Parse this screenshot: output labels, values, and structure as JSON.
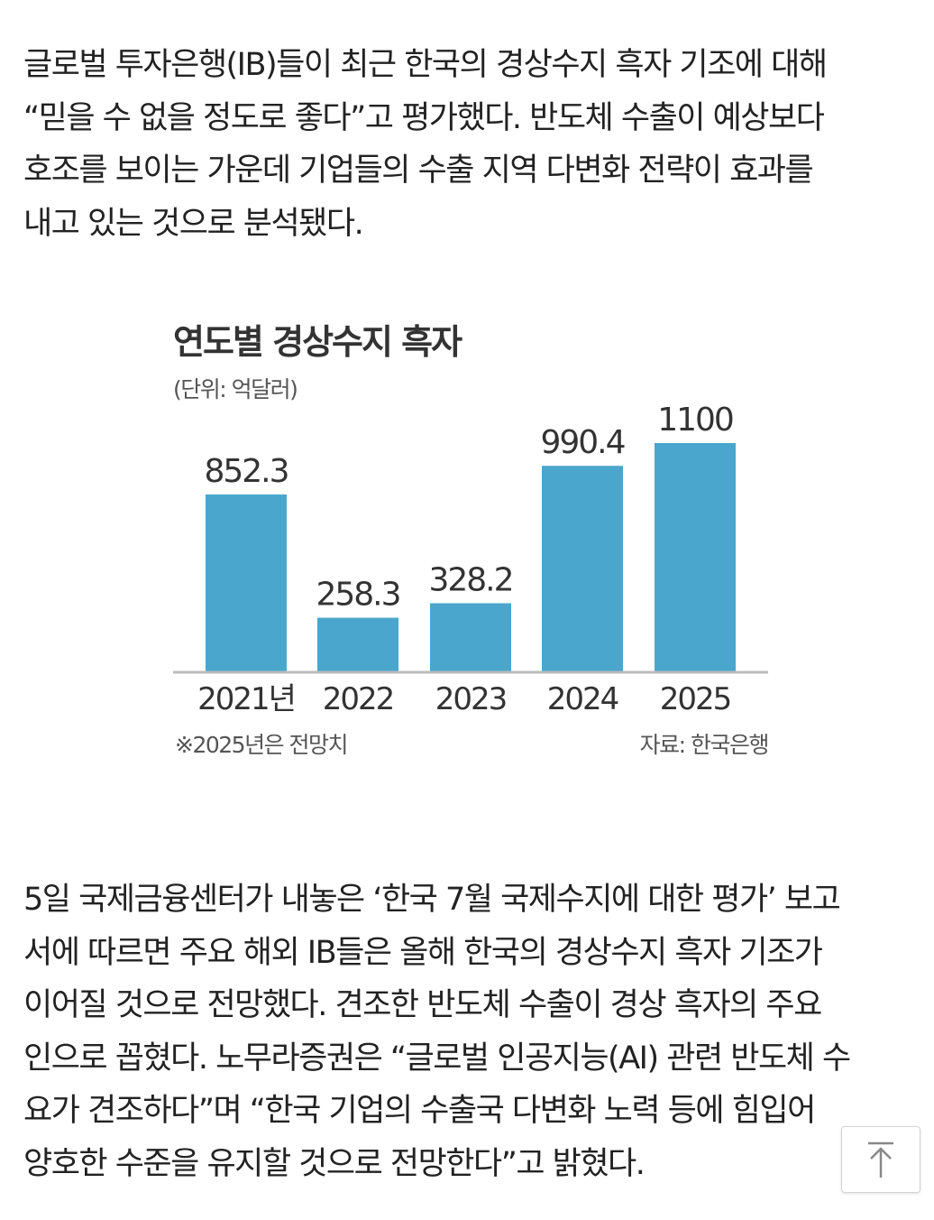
{
  "article": {
    "paragraph1": [
      "글로벌 투자은행(IB)들이 최근 한국의 경상수지 흑자 기조에 대해",
      "“믿을 수 없을 정도로 좋다”고 평가했다. 반도체 수출이 예상보다",
      "호조를 보이는 가운데 기업들의 수출 지역 다변화 전략이 효과를",
      "내고 있는 것으로 분석됐다."
    ],
    "paragraph2": [
      "5일 국제금융센터가 내놓은 ‘한국 7월 국제수지에 대한 평가’ 보고",
      "서에 따르면 주요 해외 IB들은 올해 한국의 경상수지 흑자 기조가",
      "이어질 것으로 전망했다. 견조한 반도체 수출이 경상 흑자의 주요",
      "인으로 꼽혔다. 노무라증권은 “글로벌 인공지능(AI) 관련 반도체 수",
      "요가 견조하다”며 “한국 기업의 수출국 다변화 노력 등에 힘입어",
      "양호한 수준을 유지할 것으로 전망한다”고 밝혔다."
    ]
  },
  "chart_data": {
    "type": "bar",
    "title": "연도별 경상수지 흑자",
    "unit": "(단위: 억달러)",
    "categories": [
      "2021년",
      "2022",
      "2023",
      "2024",
      "2025"
    ],
    "values": [
      852.3,
      258.3,
      328.2,
      990.4,
      1100
    ],
    "value_labels": [
      "852.3",
      "258.3",
      "328.2",
      "990.4",
      "1100"
    ],
    "ylim": [
      0,
      1100
    ],
    "bar_color": "#4aa6cc",
    "note": "※2025년은 전망치",
    "source": "자료: 한국은행"
  },
  "ui": {
    "scroll_top_icon": "arrow-up-icon"
  }
}
